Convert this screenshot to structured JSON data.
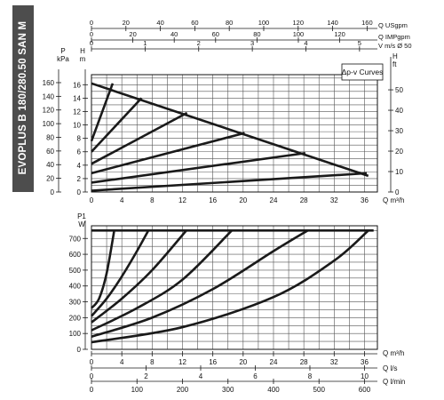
{
  "product": {
    "name": "EVOPLUS B 180/280.50 SAN M",
    "band_color": "#4d4d4d"
  },
  "chart_data": [
    {
      "type": "line",
      "legend_box": "Δp-v Curves",
      "x_label": "Q m³/h",
      "x_ticks": [
        0,
        4,
        8,
        12,
        16,
        20,
        24,
        28,
        32,
        36
      ],
      "xlim": [
        0,
        38
      ],
      "top_axes": [
        {
          "label": "Q USgpm",
          "ticks": [
            0,
            20,
            40,
            60,
            80,
            100,
            120,
            140,
            160
          ]
        },
        {
          "label": "Q IMPgpm",
          "ticks": [
            0,
            20,
            40,
            60,
            80,
            100,
            120
          ]
        },
        {
          "label": "V m/s Ø 50",
          "ticks": [
            0,
            1,
            2,
            3,
            4,
            5
          ]
        }
      ],
      "left_label_outer": "P kPa",
      "left_ticks_outer": [
        0,
        20,
        40,
        60,
        80,
        100,
        120,
        140,
        160
      ],
      "left_label_inner": "H m",
      "left_ticks_inner": [
        0,
        2,
        4,
        6,
        8,
        10,
        12,
        14,
        16
      ],
      "right_label": "H ft",
      "right_ticks": [
        0,
        10,
        20,
        30,
        40,
        50
      ],
      "ylim": [
        0,
        17.5
      ],
      "envelope": [
        [
          0,
          16.2
        ],
        [
          36.5,
          2.4
        ]
      ],
      "series": [
        {
          "values": [
            [
              0,
              7.6
            ],
            [
              2.8,
              16.2
            ]
          ]
        },
        {
          "values": [
            [
              0,
              6.0
            ],
            [
              6.6,
              14.0
            ]
          ]
        },
        {
          "values": [
            [
              0,
              4.2
            ],
            [
              12.6,
              11.8
            ]
          ]
        },
        {
          "values": [
            [
              0,
              2.8
            ],
            [
              20.2,
              8.8
            ]
          ]
        },
        {
          "values": [
            [
              0,
              1.4
            ],
            [
              28.2,
              5.8
            ]
          ]
        },
        {
          "values": [
            [
              0,
              0.2
            ],
            [
              36.3,
              2.8
            ]
          ]
        }
      ]
    },
    {
      "type": "line",
      "y_label": "P1 W",
      "y_ticks": [
        0,
        100,
        200,
        300,
        400,
        500,
        600,
        700
      ],
      "ylim": [
        0,
        780
      ],
      "x_label": "Q m³/h",
      "x_ticks": [
        0,
        4,
        8,
        12,
        16,
        20,
        24,
        28,
        32,
        36
      ],
      "xlim": [
        0,
        38
      ],
      "bottom_axes": [
        {
          "label": "Q l/s",
          "ticks": [
            0,
            2,
            4,
            6,
            8,
            10
          ]
        },
        {
          "label": "Q l/min",
          "ticks": [
            0,
            100,
            200,
            300,
            400,
            500,
            600
          ]
        }
      ],
      "max_power": 750,
      "series": [
        {
          "values": [
            [
              0,
              260
            ],
            [
              1,
              320
            ],
            [
              2,
              480
            ],
            [
              3,
              750
            ]
          ]
        },
        {
          "values": [
            [
              0,
              210
            ],
            [
              2,
              320
            ],
            [
              4,
              460
            ],
            [
              6,
              620
            ],
            [
              7.5,
              750
            ]
          ]
        },
        {
          "values": [
            [
              0,
              170
            ],
            [
              4,
              320
            ],
            [
              8,
              500
            ],
            [
              12.5,
              750
            ]
          ]
        },
        {
          "values": [
            [
              0,
              120
            ],
            [
              6,
              260
            ],
            [
              12,
              440
            ],
            [
              18.5,
              750
            ]
          ]
        },
        {
          "values": [
            [
              0,
              80
            ],
            [
              8,
              200
            ],
            [
              16,
              380
            ],
            [
              24,
              620
            ],
            [
              28.5,
              750
            ]
          ]
        },
        {
          "values": [
            [
              0,
              45
            ],
            [
              12,
              140
            ],
            [
              24,
              330
            ],
            [
              32,
              560
            ],
            [
              36.5,
              750
            ]
          ]
        }
      ]
    }
  ]
}
